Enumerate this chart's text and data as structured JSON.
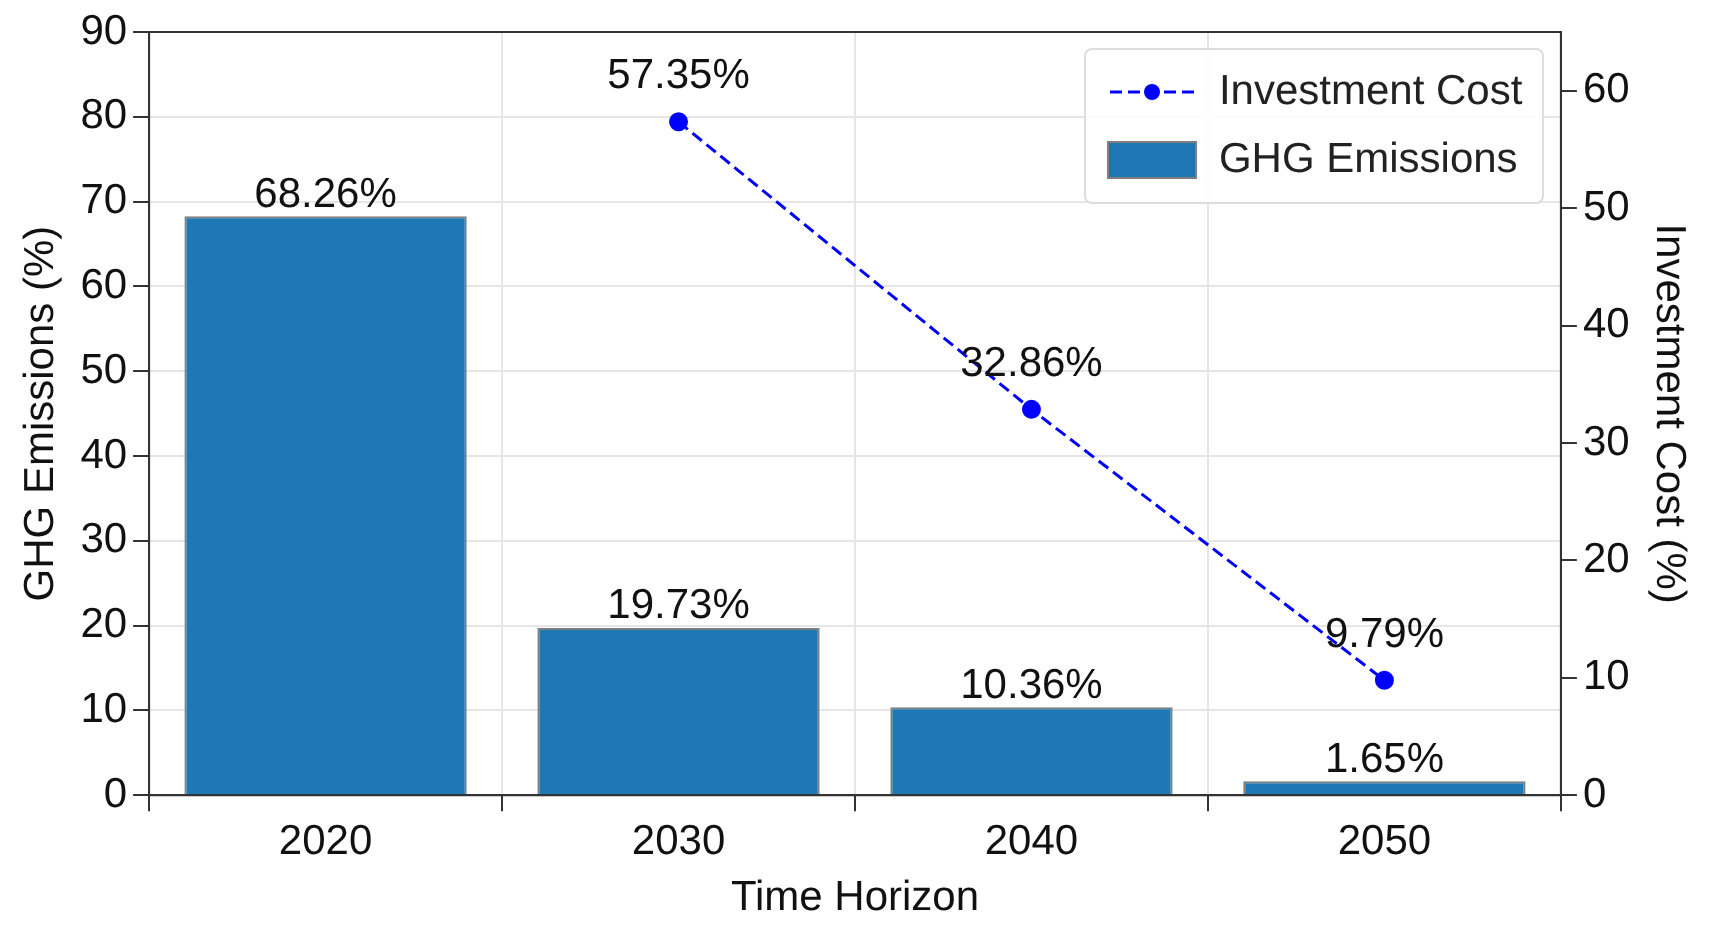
{
  "chart_data": {
    "type": "bar",
    "xlabel": "Time Horizon",
    "ylabel": "GHG Emissions (%)",
    "y2label": "Investment Cost (%)",
    "categories": [
      "2020",
      "2030",
      "2040",
      "2050"
    ],
    "series": [
      {
        "name": "GHG Emissions",
        "color": "#1f77b4",
        "values": [
          68.26,
          19.73,
          10.36,
          1.65
        ],
        "value_labels": [
          "68.26%",
          "19.73%",
          "10.36%",
          "1.65%"
        ]
      },
      {
        "name": "Investment Cost",
        "type": "line",
        "axis": "y2",
        "color": "#0000ff",
        "values": [
          null,
          57.35,
          32.86,
          9.79
        ],
        "value_labels": [
          null,
          "57.35%",
          "32.86%",
          "9.79%"
        ],
        "marker": "circle",
        "line_style": "dashed"
      }
    ],
    "ylim": [
      0,
      90
    ],
    "yticks": [
      0,
      10,
      20,
      30,
      40,
      50,
      60,
      70,
      80,
      90
    ],
    "y2lim": [
      0,
      65
    ],
    "y2ticks": [
      0,
      10,
      20,
      30,
      40,
      50,
      60
    ],
    "grid": true,
    "legend": "top right"
  }
}
